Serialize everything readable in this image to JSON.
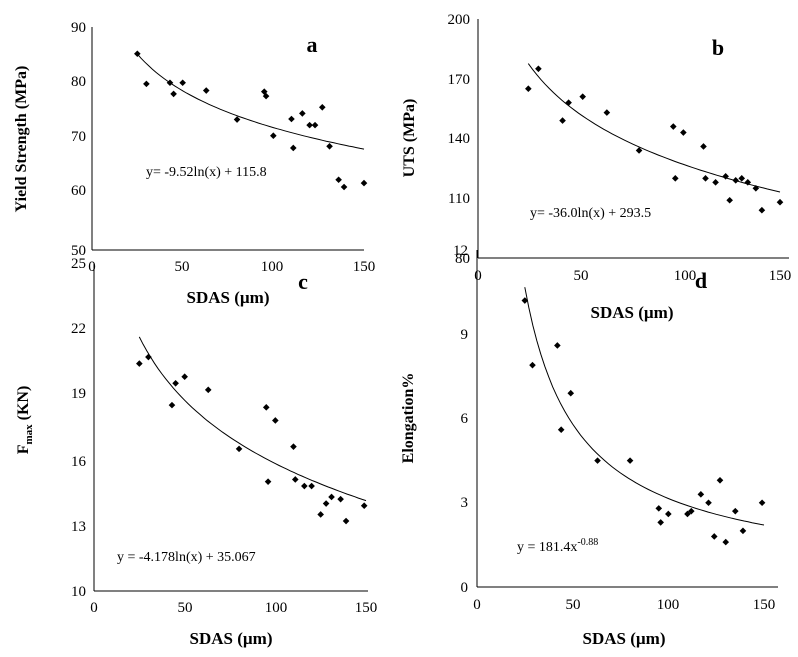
{
  "chart_data": [
    {
      "panel": "a",
      "type": "scatter",
      "xlabel": "SDAS (µm)",
      "ylabel": "Yield Strength (MPa)",
      "xlim": [
        0,
        150
      ],
      "ylim": [
        50,
        90
      ],
      "xticks": [
        "0",
        "50",
        "100",
        "150"
      ],
      "yticks": [
        "50",
        "60",
        "70",
        "80",
        "90"
      ],
      "grid": false,
      "points": [
        {
          "x": 25,
          "y": 85.2
        },
        {
          "x": 30,
          "y": 79.8
        },
        {
          "x": 43,
          "y": 80.0
        },
        {
          "x": 45,
          "y": 78.0
        },
        {
          "x": 50,
          "y": 80.0
        },
        {
          "x": 63,
          "y": 78.6
        },
        {
          "x": 80,
          "y": 73.4
        },
        {
          "x": 95,
          "y": 78.4
        },
        {
          "x": 96,
          "y": 77.6
        },
        {
          "x": 100,
          "y": 70.5
        },
        {
          "x": 110,
          "y": 73.5
        },
        {
          "x": 111,
          "y": 68.3
        },
        {
          "x": 116,
          "y": 74.5
        },
        {
          "x": 120,
          "y": 72.4
        },
        {
          "x": 123,
          "y": 72.4
        },
        {
          "x": 127,
          "y": 75.6
        },
        {
          "x": 131,
          "y": 68.6
        },
        {
          "x": 136,
          "y": 62.6
        },
        {
          "x": 139,
          "y": 61.3
        },
        {
          "x": 150,
          "y": 62.0
        }
      ],
      "trendline": {
        "kind": "log",
        "a": -9.52,
        "b": 115.8,
        "x_from": 25,
        "x_to": 150
      },
      "equation": "y= -9.52ln(x) + 115.8"
    },
    {
      "panel": "b",
      "type": "scatter",
      "xlabel": "SDAS (µm)",
      "ylabel": "UTS (MPa)",
      "xlim": [
        0,
        150
      ],
      "ylim": [
        80,
        200
      ],
      "xticks": [
        "0",
        "50",
        "100",
        "150"
      ],
      "yticks": [
        "80",
        "110",
        "140",
        "170",
        "200"
      ],
      "grid": false,
      "points": [
        {
          "x": 25,
          "y": 165
        },
        {
          "x": 30,
          "y": 175
        },
        {
          "x": 42,
          "y": 149
        },
        {
          "x": 45,
          "y": 158
        },
        {
          "x": 52,
          "y": 161
        },
        {
          "x": 64,
          "y": 153
        },
        {
          "x": 80,
          "y": 134
        },
        {
          "x": 97,
          "y": 146
        },
        {
          "x": 98,
          "y": 120
        },
        {
          "x": 102,
          "y": 143
        },
        {
          "x": 112,
          "y": 136
        },
        {
          "x": 113,
          "y": 120
        },
        {
          "x": 118,
          "y": 118
        },
        {
          "x": 123,
          "y": 121
        },
        {
          "x": 125,
          "y": 109
        },
        {
          "x": 128,
          "y": 119
        },
        {
          "x": 131,
          "y": 120
        },
        {
          "x": 134,
          "y": 118
        },
        {
          "x": 138,
          "y": 115
        },
        {
          "x": 141,
          "y": 104
        },
        {
          "x": 150,
          "y": 108
        }
      ],
      "trendline": {
        "kind": "log",
        "a": -36.0,
        "b": 293.5,
        "x_from": 25,
        "x_to": 150
      },
      "equation": "y= -36.0ln(x) + 293.5"
    },
    {
      "panel": "c",
      "type": "scatter",
      "xlabel": "SDAS (µm)",
      "ylabel_main": "F",
      "ylabel_sub": "max",
      "ylabel_tail": " (KN)",
      "xlim": [
        0,
        150
      ],
      "ylim": [
        10,
        25
      ],
      "xticks": [
        "0",
        "50",
        "100",
        "150"
      ],
      "yticks": [
        "10",
        "13",
        "16",
        "19",
        "22",
        "25"
      ],
      "grid": false,
      "points": [
        {
          "x": 25,
          "y": 20.4
        },
        {
          "x": 30,
          "y": 20.7
        },
        {
          "x": 43,
          "y": 18.5
        },
        {
          "x": 45,
          "y": 19.5
        },
        {
          "x": 50,
          "y": 19.8
        },
        {
          "x": 63,
          "y": 19.2
        },
        {
          "x": 80,
          "y": 16.5
        },
        {
          "x": 95,
          "y": 18.4
        },
        {
          "x": 96,
          "y": 15.0
        },
        {
          "x": 100,
          "y": 17.8
        },
        {
          "x": 110,
          "y": 16.6
        },
        {
          "x": 111,
          "y": 15.1
        },
        {
          "x": 116,
          "y": 14.8
        },
        {
          "x": 120,
          "y": 14.8
        },
        {
          "x": 125,
          "y": 13.5
        },
        {
          "x": 128,
          "y": 14.0
        },
        {
          "x": 131,
          "y": 14.3
        },
        {
          "x": 136,
          "y": 14.2
        },
        {
          "x": 139,
          "y": 13.2
        },
        {
          "x": 149,
          "y": 13.9
        }
      ],
      "trendline": {
        "kind": "log",
        "a": -4.178,
        "b": 35.067,
        "x_from": 25,
        "x_to": 150
      },
      "equation": "y = -4.178ln(x) + 35.067"
    },
    {
      "panel": "d",
      "type": "scatter",
      "xlabel": "SDAS (µm)",
      "ylabel": "Elongation%",
      "xlim": [
        0,
        150
      ],
      "ylim": [
        0,
        12
      ],
      "xticks": [
        "0",
        "50",
        "100",
        "150"
      ],
      "yticks": [
        "0",
        "3",
        "6",
        "9",
        "12"
      ],
      "grid": false,
      "points": [
        {
          "x": 25,
          "y": 10.2
        },
        {
          "x": 29,
          "y": 7.9
        },
        {
          "x": 42,
          "y": 8.6
        },
        {
          "x": 44,
          "y": 5.6
        },
        {
          "x": 49,
          "y": 6.9
        },
        {
          "x": 63,
          "y": 4.5
        },
        {
          "x": 80,
          "y": 4.5
        },
        {
          "x": 95,
          "y": 2.8
        },
        {
          "x": 96,
          "y": 2.3
        },
        {
          "x": 100,
          "y": 2.6
        },
        {
          "x": 110,
          "y": 2.6
        },
        {
          "x": 112,
          "y": 2.7
        },
        {
          "x": 117,
          "y": 3.3
        },
        {
          "x": 121,
          "y": 3.0
        },
        {
          "x": 124,
          "y": 1.8
        },
        {
          "x": 127,
          "y": 3.8
        },
        {
          "x": 130,
          "y": 1.6
        },
        {
          "x": 135,
          "y": 2.7
        },
        {
          "x": 139,
          "y": 2.0
        },
        {
          "x": 149,
          "y": 3.0
        }
      ],
      "trendline": {
        "kind": "power",
        "a": 181.4,
        "b": -0.88,
        "x_from": 25,
        "x_to": 150
      },
      "equation_main": "y = 181.4x",
      "equation_sup": "-0.88"
    }
  ]
}
